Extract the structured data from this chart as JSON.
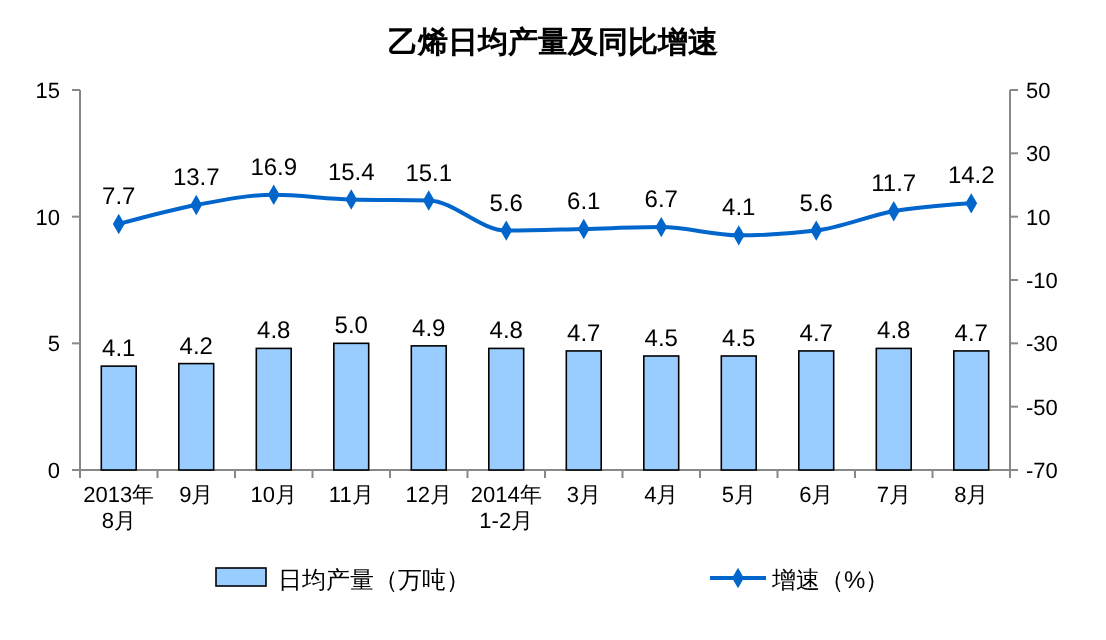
{
  "chart_data": {
    "type": "bar",
    "title": "乙烯日均产量及同比增速",
    "categories": [
      "2013年\n8月",
      "9月",
      "10月",
      "11月",
      "12月",
      "2014年\n1-2月",
      "3月",
      "4月",
      "5月",
      "6月",
      "7月",
      "8月"
    ],
    "series": [
      {
        "name": "日均产量（万吨）",
        "color": "#99ccff",
        "values": [
          4.1,
          4.2,
          4.8,
          5.0,
          4.9,
          4.8,
          4.7,
          4.5,
          4.5,
          4.7,
          4.8,
          4.7
        ],
        "value_labels": [
          "4.1",
          "4.2",
          "4.8",
          "5.0",
          "4.9",
          "4.8",
          "4.7",
          "4.5",
          "4.5",
          "4.7",
          "4.8",
          "4.7"
        ]
      },
      {
        "name": "增速（%）",
        "type": "line",
        "axis": "y2",
        "color": "#0066cc",
        "marker": "diamond",
        "values": [
          7.7,
          13.7,
          16.9,
          15.4,
          15.1,
          5.6,
          6.1,
          6.7,
          4.1,
          5.6,
          11.7,
          14.2
        ],
        "value_labels": [
          "7.7",
          "13.7",
          "16.9",
          "15.4",
          "15.1",
          "5.6",
          "6.1",
          "6.7",
          "4.1",
          "5.6",
          "11.7",
          "14.2"
        ]
      }
    ],
    "ylim": [
      0,
      15
    ],
    "yticks": [
      0,
      5,
      10,
      15
    ],
    "y2lim": [
      -70,
      50
    ],
    "y2ticks": [
      -70,
      -50,
      -30,
      -10,
      10,
      30,
      50
    ],
    "legend": "bottom"
  }
}
